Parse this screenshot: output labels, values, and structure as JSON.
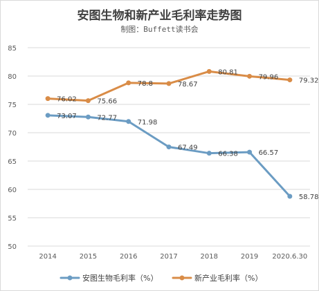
{
  "chart_data": {
    "type": "line",
    "title": "安图生物和新产业毛利率走势图",
    "subtitle": "制图：Buffett读书会",
    "categories": [
      "2014",
      "2015",
      "2016",
      "2017",
      "2018",
      "2019",
      "2020.6.30"
    ],
    "y_ticks": [
      "50",
      "55",
      "60",
      "65",
      "70",
      "75",
      "80",
      "85"
    ],
    "ylim": [
      50,
      85
    ],
    "grid": true,
    "legend_position": "bottom",
    "series": [
      {
        "name": "安图生物毛利率（%）",
        "color": "#6b9cc3",
        "values": [
          73.07,
          72.77,
          71.98,
          67.49,
          66.38,
          66.57,
          58.78
        ],
        "labels": [
          "73.07",
          "72.77",
          "71.98",
          "67.49",
          "66.38",
          "66.57",
          "58.78"
        ]
      },
      {
        "name": "新产业毛利率（%）",
        "color": "#d98c47",
        "values": [
          76.02,
          75.66,
          78.8,
          78.67,
          80.81,
          79.96,
          79.32
        ],
        "labels": [
          "76.02",
          "75.66",
          "78.8",
          "78.67",
          "80.81",
          "79.96",
          "79.32"
        ]
      }
    ]
  }
}
